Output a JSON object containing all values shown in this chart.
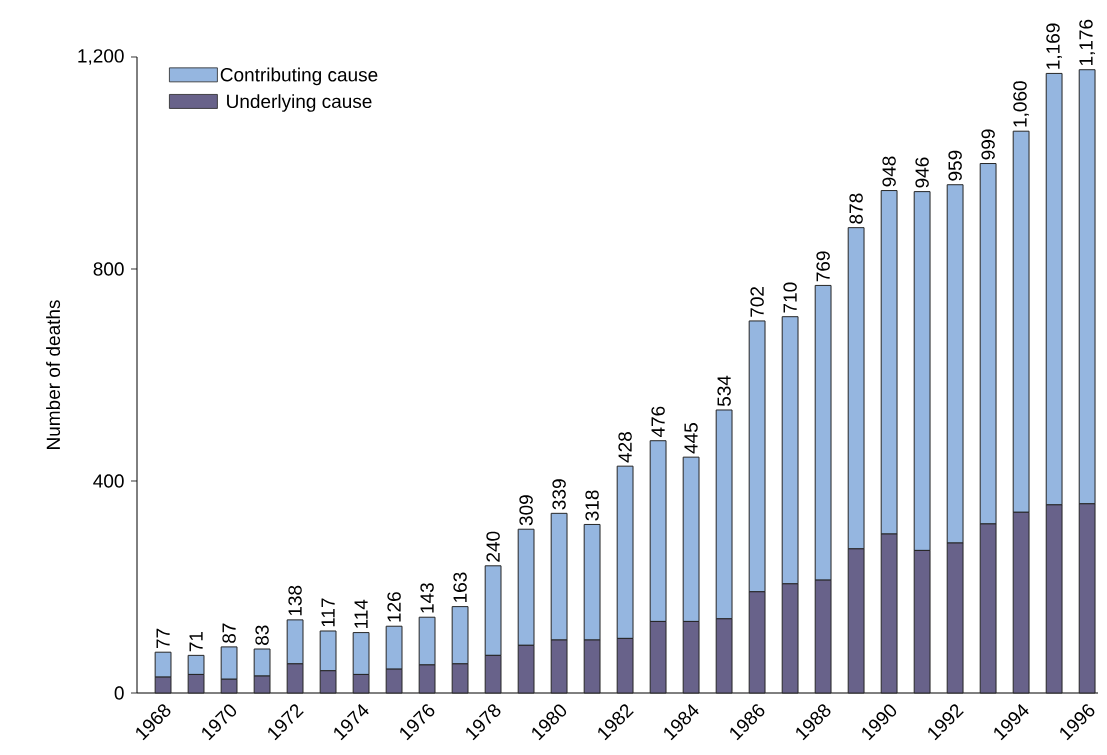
{
  "chart_data": {
    "type": "bar",
    "stacked": true,
    "ylabel": "Number of deaths",
    "categories": [
      "1968",
      null,
      "1970",
      null,
      "1972",
      null,
      "1974",
      null,
      "1976",
      null,
      "1978",
      null,
      "1980",
      null,
      "1982",
      null,
      "1984",
      null,
      "1986",
      null,
      "1988",
      null,
      "1990",
      null,
      "1992",
      null,
      "1994",
      null,
      "1996"
    ],
    "series": [
      {
        "name": "Underlying cause",
        "color": "#68628a",
        "values": [
          30,
          35,
          26,
          32,
          55,
          42,
          35,
          45,
          53,
          55,
          71,
          90,
          100,
          100,
          103,
          135,
          135,
          140,
          191,
          206,
          213,
          272,
          300,
          269,
          283,
          319,
          341,
          355,
          357
        ]
      },
      {
        "name": "Contributing cause",
        "color": "#95b6e0",
        "values": [
          47,
          36,
          61,
          51,
          83,
          75,
          79,
          81,
          90,
          108,
          169,
          219,
          239,
          218,
          325,
          341,
          310,
          394,
          511,
          504,
          556,
          606,
          648,
          677,
          676,
          680,
          719,
          814,
          819
        ]
      }
    ],
    "totals": [
      "77",
      "71",
      "87",
      "83",
      "138",
      "117",
      "114",
      "126",
      "143",
      "163",
      "240",
      "309",
      "339",
      "318",
      "428",
      "476",
      "445",
      "534",
      "702",
      "710",
      "769",
      "878",
      "948",
      "946",
      "959",
      "999",
      "1,060",
      "1,169",
      "1,176"
    ],
    "ylim": [
      0,
      1200
    ],
    "yticks": [
      0,
      400,
      800,
      {
        "value": 1200,
        "label": "1,200"
      }
    ],
    "grid": false,
    "legend": "top left"
  }
}
